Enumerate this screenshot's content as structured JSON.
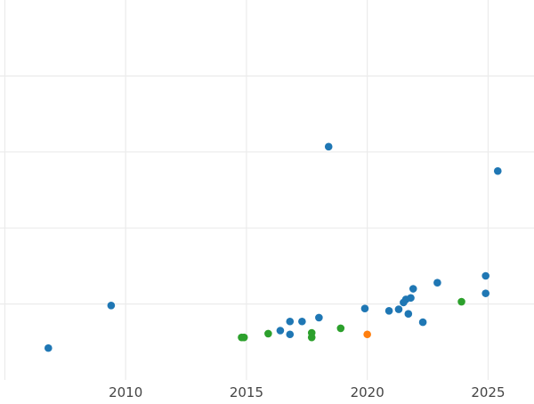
{
  "chart_data": {
    "type": "scatter",
    "title": "",
    "xlabel": "",
    "ylabel": "",
    "grid": true,
    "xlim": [
      2004.8,
      2026.9
    ],
    "ylim": [
      0,
      5
    ],
    "x_ticks": [
      2010,
      2015,
      2020,
      2025
    ],
    "y_gridlines": [
      1,
      2,
      3,
      4
    ],
    "colors": {
      "blue": "#1f77b4",
      "green": "#2ca02c",
      "orange": "#ff7f0e",
      "grid": "#ebebeb",
      "tick_label": "#444444"
    },
    "series": [
      {
        "color_key": "blue",
        "points": [
          {
            "x": 2006.8,
            "y": 0.42
          },
          {
            "x": 2009.4,
            "y": 0.98
          },
          {
            "x": 2016.4,
            "y": 0.65
          },
          {
            "x": 2016.8,
            "y": 0.6
          },
          {
            "x": 2016.8,
            "y": 0.77
          },
          {
            "x": 2017.3,
            "y": 0.77
          },
          {
            "x": 2018.0,
            "y": 0.82
          },
          {
            "x": 2018.4,
            "y": 3.07
          },
          {
            "x": 2019.9,
            "y": 0.94
          },
          {
            "x": 2020.9,
            "y": 0.91
          },
          {
            "x": 2021.3,
            "y": 0.93
          },
          {
            "x": 2021.5,
            "y": 1.02
          },
          {
            "x": 2021.6,
            "y": 1.06
          },
          {
            "x": 2021.7,
            "y": 0.87
          },
          {
            "x": 2021.8,
            "y": 1.08
          },
          {
            "x": 2021.9,
            "y": 1.2
          },
          {
            "x": 2022.3,
            "y": 0.76
          },
          {
            "x": 2022.9,
            "y": 1.28
          },
          {
            "x": 2024.9,
            "y": 1.14
          },
          {
            "x": 2024.9,
            "y": 1.37
          },
          {
            "x": 2025.4,
            "y": 2.75
          }
        ]
      },
      {
        "color_key": "green",
        "points": [
          {
            "x": 2014.8,
            "y": 0.56
          },
          {
            "x": 2014.9,
            "y": 0.56
          },
          {
            "x": 2015.9,
            "y": 0.61
          },
          {
            "x": 2017.7,
            "y": 0.56
          },
          {
            "x": 2017.7,
            "y": 0.62
          },
          {
            "x": 2018.9,
            "y": 0.68
          },
          {
            "x": 2023.9,
            "y": 1.03
          }
        ]
      },
      {
        "color_key": "orange",
        "points": [
          {
            "x": 2020.0,
            "y": 0.6
          }
        ]
      }
    ]
  }
}
